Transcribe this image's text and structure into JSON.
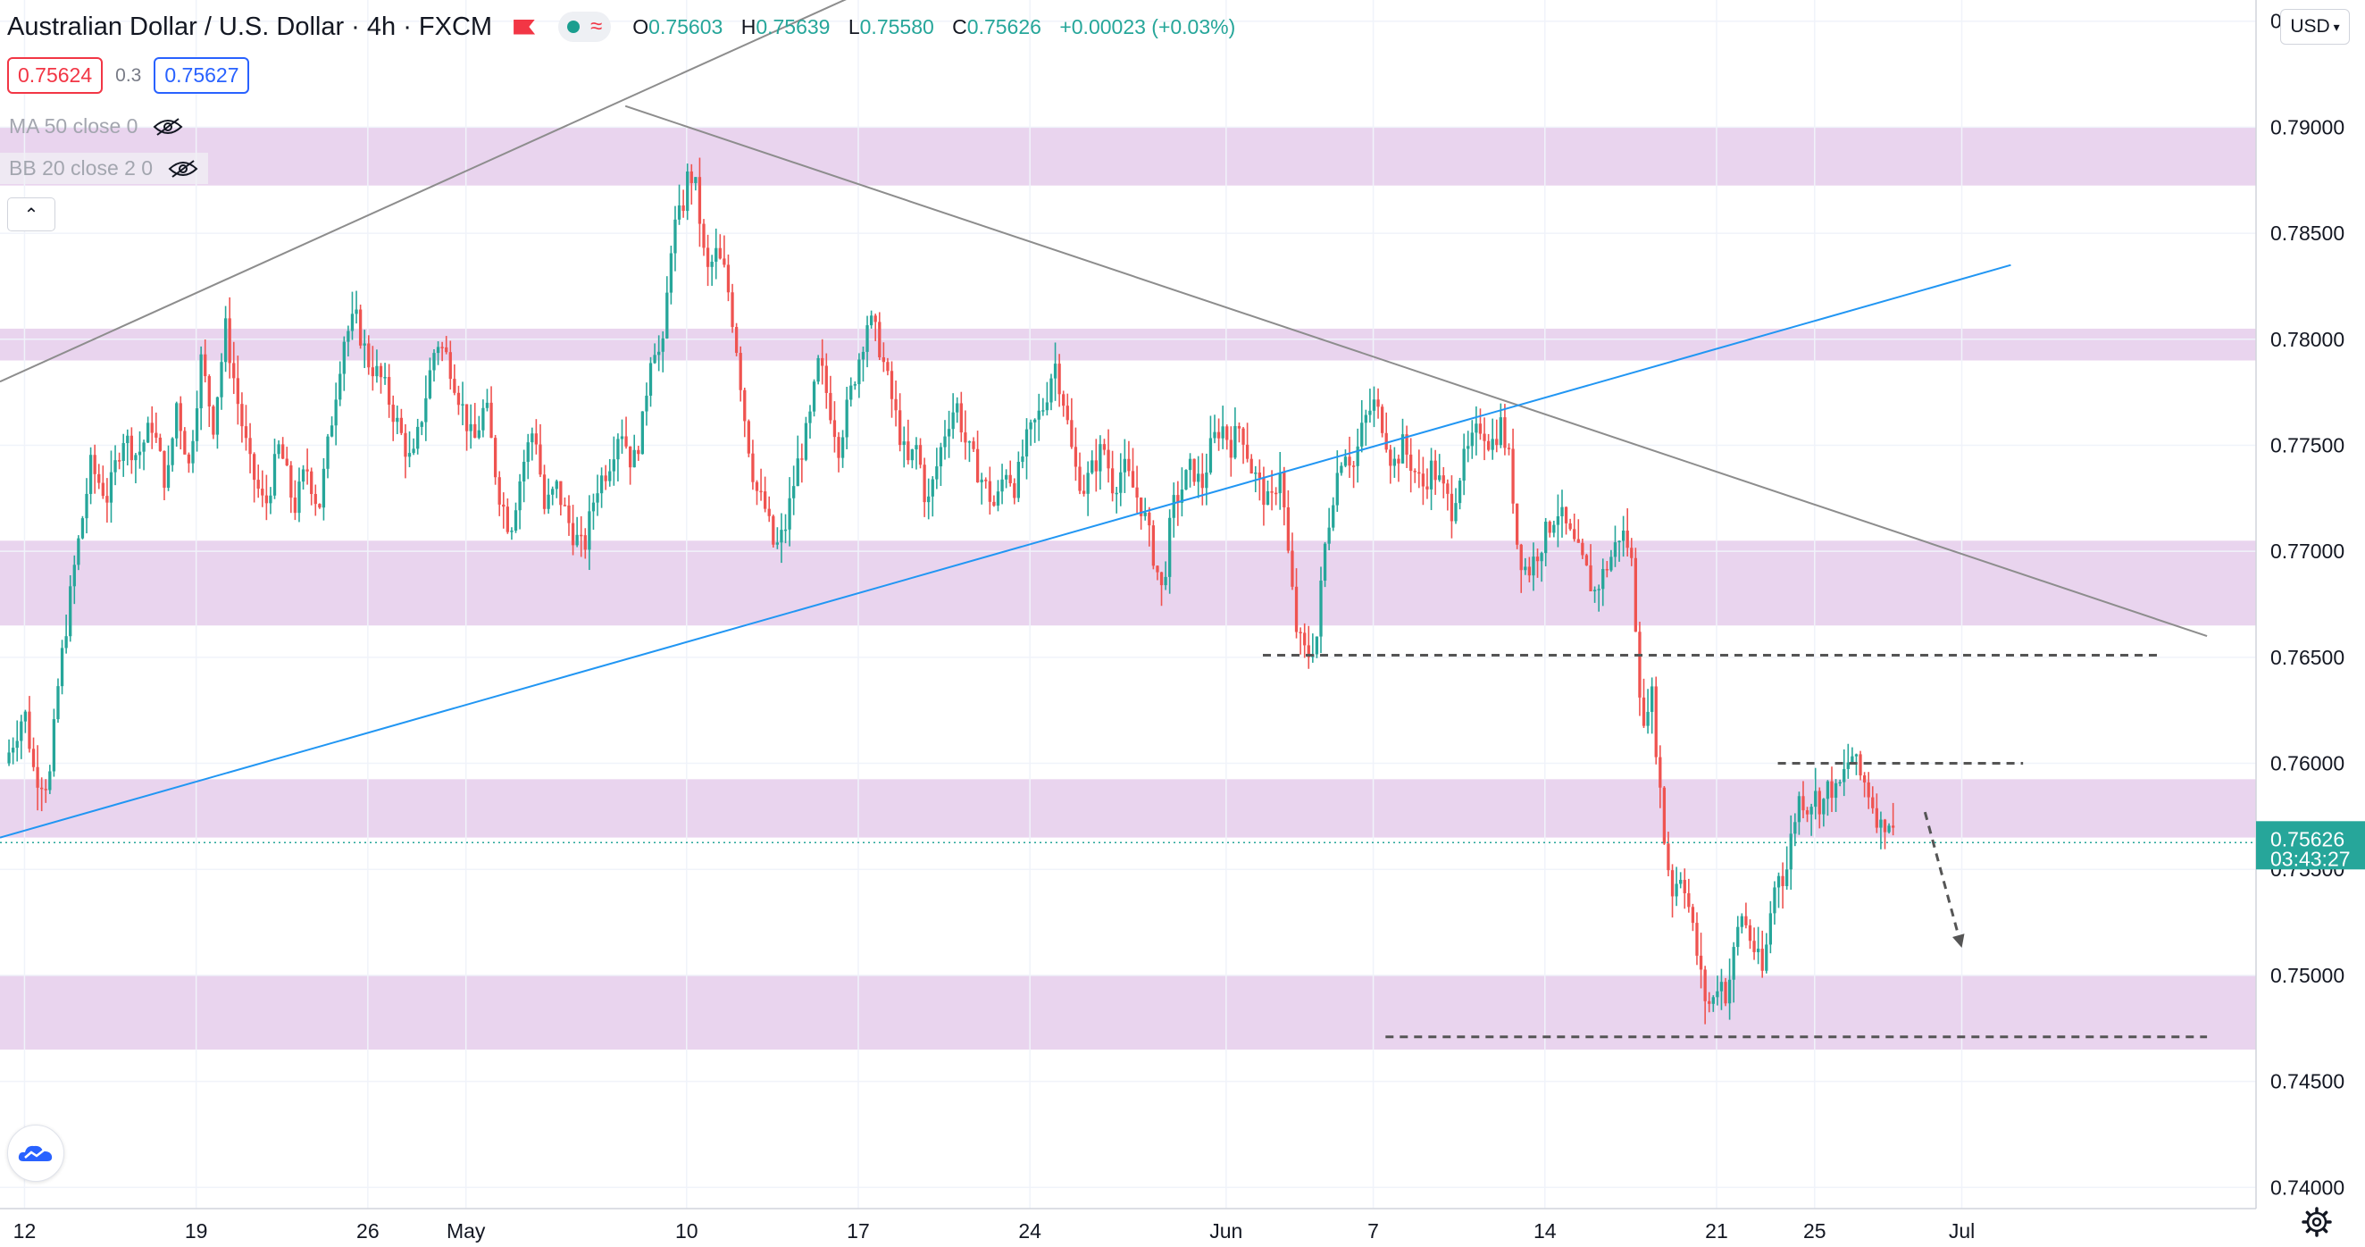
{
  "header": {
    "symbol_title": "Australian Dollar / U.S. Dollar · 4h · FXCM",
    "ohlc": {
      "o_label": "O",
      "o": "0.75603",
      "h_label": "H",
      "h": "0.75639",
      "l_label": "L",
      "l": "0.75580",
      "c_label": "C",
      "c": "0.75626",
      "change": "+0.00023 (+0.03%)"
    },
    "icons": [
      "flag-icon",
      "status-dot-icon",
      "wave-icon"
    ]
  },
  "quote": {
    "sell_price": "0.75624",
    "spread": "0.3",
    "buy_price": "0.75627"
  },
  "indicators": {
    "ma_label": "MA 50 close 0",
    "bb_label": "BB 20 close 2 0"
  },
  "currency_button": "USD",
  "colors": {
    "up": "#26a69a",
    "down": "#ef5350",
    "zone": "#e9d4ee",
    "trendline": "#8d8d8d",
    "support_line": "#2196f3",
    "current_price": "#26a69a"
  },
  "chart_data": {
    "type": "candlestick",
    "timeframe": "4h",
    "y_ticks": [
      "0.74000",
      "0.74500",
      "0.75000",
      "0.75500",
      "0.76000",
      "0.76500",
      "0.77000",
      "0.77500",
      "0.78000",
      "0.78500",
      "0.79000",
      "0.79500"
    ],
    "x_ticks": [
      {
        "label": "12",
        "day": -12
      },
      {
        "label": "19",
        "day": -5
      },
      {
        "label": "26",
        "day": 2
      },
      {
        "label": "May",
        "day": 6
      },
      {
        "label": "10",
        "day": 15
      },
      {
        "label": "17",
        "day": 22
      },
      {
        "label": "24",
        "day": 29
      },
      {
        "label": "Jun",
        "day": 37
      },
      {
        "label": "7",
        "day": 43
      },
      {
        "label": "14",
        "day": 50
      },
      {
        "label": "21",
        "day": 57
      },
      {
        "label": "25",
        "day": 61
      },
      {
        "label": "Jul",
        "day": 67
      }
    ],
    "price_path": [
      [
        -12.8,
        0.76
      ],
      [
        -12.0,
        0.7625
      ],
      [
        -11.6,
        0.7595
      ],
      [
        -11.0,
        0.759
      ],
      [
        -10.6,
        0.764
      ],
      [
        -10.0,
        0.769
      ],
      [
        -9.3,
        0.774
      ],
      [
        -8.6,
        0.7725
      ],
      [
        -8.0,
        0.7755
      ],
      [
        -7.4,
        0.7745
      ],
      [
        -6.8,
        0.776
      ],
      [
        -6.2,
        0.773
      ],
      [
        -5.8,
        0.777
      ],
      [
        -5.3,
        0.774
      ],
      [
        -4.8,
        0.779
      ],
      [
        -4.3,
        0.776
      ],
      [
        -3.8,
        0.7805
      ],
      [
        -3.3,
        0.777
      ],
      [
        -2.8,
        0.774
      ],
      [
        -2.2,
        0.772
      ],
      [
        -1.6,
        0.775
      ],
      [
        -1.0,
        0.772
      ],
      [
        -0.5,
        0.774
      ],
      [
        0.0,
        0.772
      ],
      [
        0.5,
        0.776
      ],
      [
        1.0,
        0.78
      ],
      [
        1.5,
        0.781
      ],
      [
        2.0,
        0.779
      ],
      [
        2.6,
        0.778
      ],
      [
        3.2,
        0.776
      ],
      [
        3.8,
        0.774
      ],
      [
        4.3,
        0.777
      ],
      [
        4.8,
        0.78
      ],
      [
        5.3,
        0.779
      ],
      [
        5.8,
        0.777
      ],
      [
        6.3,
        0.775
      ],
      [
        6.8,
        0.777
      ],
      [
        7.3,
        0.773
      ],
      [
        7.8,
        0.771
      ],
      [
        8.3,
        0.774
      ],
      [
        8.8,
        0.776
      ],
      [
        9.2,
        0.772
      ],
      [
        9.7,
        0.773
      ],
      [
        10.3,
        0.771
      ],
      [
        10.8,
        0.77
      ],
      [
        11.3,
        0.773
      ],
      [
        11.8,
        0.774
      ],
      [
        12.3,
        0.776
      ],
      [
        12.8,
        0.774
      ],
      [
        13.2,
        0.776
      ],
      [
        13.6,
        0.78
      ],
      [
        14.0,
        0.779
      ],
      [
        14.4,
        0.785
      ],
      [
        14.8,
        0.786
      ],
      [
        15.1,
        0.788
      ],
      [
        15.4,
        0.787
      ],
      [
        15.8,
        0.783
      ],
      [
        16.2,
        0.784
      ],
      [
        16.6,
        0.783
      ],
      [
        17.0,
        0.78
      ],
      [
        17.4,
        0.776
      ],
      [
        17.8,
        0.773
      ],
      [
        18.2,
        0.772
      ],
      [
        18.6,
        0.77
      ],
      [
        19.0,
        0.771
      ],
      [
        19.5,
        0.774
      ],
      [
        20.0,
        0.776
      ],
      [
        20.4,
        0.779
      ],
      [
        20.8,
        0.777
      ],
      [
        21.2,
        0.775
      ],
      [
        21.6,
        0.777
      ],
      [
        22.0,
        0.779
      ],
      [
        22.4,
        0.781
      ],
      [
        22.8,
        0.78
      ],
      [
        23.2,
        0.778
      ],
      [
        23.6,
        0.776
      ],
      [
        24.0,
        0.774
      ],
      [
        24.4,
        0.775
      ],
      [
        24.8,
        0.772
      ],
      [
        25.2,
        0.774
      ],
      [
        25.6,
        0.776
      ],
      [
        26.0,
        0.777
      ],
      [
        26.4,
        0.775
      ],
      [
        26.8,
        0.774
      ],
      [
        27.2,
        0.773
      ],
      [
        27.6,
        0.772
      ],
      [
        28.0,
        0.774
      ],
      [
        28.4,
        0.773
      ],
      [
        28.8,
        0.775
      ],
      [
        29.2,
        0.776
      ],
      [
        29.6,
        0.777
      ],
      [
        30.0,
        0.779
      ],
      [
        30.4,
        0.777
      ],
      [
        30.8,
        0.774
      ],
      [
        31.2,
        0.773
      ],
      [
        31.6,
        0.774
      ],
      [
        32.0,
        0.775
      ],
      [
        32.4,
        0.773
      ],
      [
        32.8,
        0.774
      ],
      [
        33.2,
        0.773
      ],
      [
        33.6,
        0.772
      ],
      [
        34.0,
        0.77
      ],
      [
        34.4,
        0.768
      ],
      [
        34.8,
        0.772
      ],
      [
        35.2,
        0.773
      ],
      [
        35.6,
        0.774
      ],
      [
        36.0,
        0.773
      ],
      [
        36.4,
        0.775
      ],
      [
        36.8,
        0.776
      ],
      [
        37.2,
        0.775
      ],
      [
        37.6,
        0.776
      ],
      [
        38.0,
        0.774
      ],
      [
        38.4,
        0.773
      ],
      [
        38.8,
        0.772
      ],
      [
        39.2,
        0.774
      ],
      [
        39.6,
        0.769
      ],
      [
        39.9,
        0.766
      ],
      [
        40.3,
        0.765
      ],
      [
        40.7,
        0.766
      ],
      [
        41.0,
        0.77
      ],
      [
        41.4,
        0.773
      ],
      [
        41.8,
        0.775
      ],
      [
        42.2,
        0.774
      ],
      [
        42.6,
        0.776
      ],
      [
        43.0,
        0.777
      ],
      [
        43.4,
        0.776
      ],
      [
        43.8,
        0.774
      ],
      [
        44.2,
        0.775
      ],
      [
        44.6,
        0.774
      ],
      [
        45.0,
        0.773
      ],
      [
        45.4,
        0.774
      ],
      [
        45.8,
        0.773
      ],
      [
        46.2,
        0.772
      ],
      [
        46.6,
        0.774
      ],
      [
        47.0,
        0.775
      ],
      [
        47.4,
        0.776
      ],
      [
        47.8,
        0.775
      ],
      [
        48.2,
        0.776
      ],
      [
        48.6,
        0.774
      ],
      [
        48.9,
        0.77
      ],
      [
        49.3,
        0.769
      ],
      [
        49.7,
        0.77
      ],
      [
        50.1,
        0.771
      ],
      [
        50.5,
        0.772
      ],
      [
        50.9,
        0.771
      ],
      [
        51.3,
        0.77
      ],
      [
        51.7,
        0.769
      ],
      [
        52.0,
        0.768
      ],
      [
        52.4,
        0.769
      ],
      [
        52.8,
        0.77
      ],
      [
        53.1,
        0.771
      ],
      [
        53.5,
        0.77
      ],
      [
        53.8,
        0.765
      ],
      [
        54.0,
        0.761
      ],
      [
        54.3,
        0.764
      ],
      [
        54.6,
        0.76
      ],
      [
        54.9,
        0.756
      ],
      [
        55.2,
        0.754
      ],
      [
        55.6,
        0.755
      ],
      [
        55.9,
        0.753
      ],
      [
        56.2,
        0.751
      ],
      [
        56.5,
        0.749
      ],
      [
        56.8,
        0.7485
      ],
      [
        57.1,
        0.75
      ],
      [
        57.4,
        0.749
      ],
      [
        57.7,
        0.751
      ],
      [
        58.0,
        0.753
      ],
      [
        58.3,
        0.752
      ],
      [
        58.6,
        0.751
      ],
      [
        58.9,
        0.75
      ],
      [
        59.2,
        0.753
      ],
      [
        59.5,
        0.755
      ],
      [
        59.8,
        0.7545
      ],
      [
        60.1,
        0.757
      ],
      [
        60.4,
        0.7585
      ],
      [
        60.7,
        0.758
      ],
      [
        61.0,
        0.7585
      ],
      [
        61.3,
        0.758
      ],
      [
        61.6,
        0.759
      ],
      [
        61.9,
        0.7585
      ],
      [
        62.2,
        0.7595
      ],
      [
        62.5,
        0.7605
      ],
      [
        62.8,
        0.7595
      ],
      [
        63.1,
        0.759
      ],
      [
        63.4,
        0.758
      ],
      [
        63.7,
        0.757
      ],
      [
        64.0,
        0.7575
      ],
      [
        64.3,
        0.7562
      ]
    ],
    "zones": [
      {
        "from": 0.78725,
        "to": 0.79
      },
      {
        "from": 0.779,
        "to": 0.7805
      },
      {
        "from": 0.7665,
        "to": 0.7705
      },
      {
        "from": 0.7565,
        "to": 0.75925
      },
      {
        "from": 0.7465,
        "to": 0.75
      }
    ],
    "trendlines": [
      {
        "kind": "rising-resistance",
        "from": [
          -13,
          0.778
        ],
        "to": [
          31,
          0.801
        ]
      },
      {
        "kind": "falling-resistance",
        "from": [
          12.5,
          0.791
        ],
        "to": [
          77,
          0.766
        ]
      },
      {
        "kind": "rising-support",
        "from": [
          -13,
          0.7565
        ],
        "to": [
          69,
          0.7835
        ]
      }
    ],
    "horizontal_levels": [
      {
        "value": 0.7651,
        "from_day": 38.5,
        "to_day": 75.0
      },
      {
        "value": 0.76,
        "from_day": 59.5,
        "to_day": 69.5
      },
      {
        "value": 0.7471,
        "from_day": 43.5,
        "to_day": 77.0
      }
    ],
    "projection_arrow": {
      "from": [
        65.5,
        0.7577
      ],
      "to": [
        67.0,
        0.7513
      ]
    },
    "current_price": {
      "value": 0.75626,
      "label": "0.75626",
      "countdown": "03:43:27"
    },
    "y_range": [
      0.739,
      0.796
    ],
    "x_range": [
      -13.0,
      79.0
    ],
    "grid": true
  }
}
